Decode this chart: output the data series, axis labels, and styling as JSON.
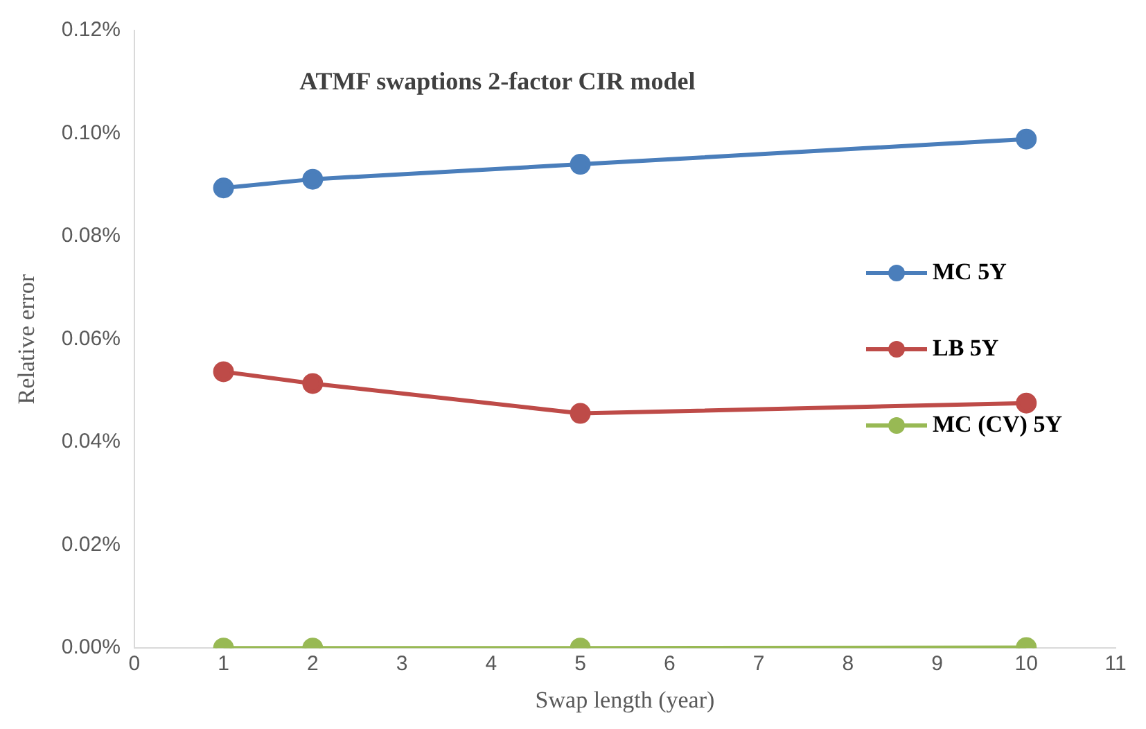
{
  "chart_data": {
    "type": "line",
    "title": "ATMF swaptions 2-factor CIR model",
    "xlabel": "Swap length (year)",
    "ylabel": "Relative error",
    "x": [
      1,
      2,
      5,
      10
    ],
    "series": [
      {
        "name": "MC 5Y",
        "color": "#4a7ebb",
        "values": [
          0.0894,
          0.0911,
          0.094,
          0.0989
        ]
      },
      {
        "name": "LB 5Y",
        "color": "#be4b48",
        "values": [
          0.0537,
          0.0514,
          0.0456,
          0.0476
        ]
      },
      {
        "name": "MC (CV) 5Y",
        "color": "#98b954",
        "values": [
          0,
          0,
          0,
          0.0001
        ]
      }
    ],
    "xlim": [
      0,
      11
    ],
    "xticks": [
      0,
      1,
      2,
      3,
      4,
      5,
      6,
      7,
      8,
      9,
      10,
      11
    ],
    "ylim": [
      0,
      0.12
    ],
    "yticks": [
      {
        "value": 0,
        "label": "0.00%"
      },
      {
        "value": 0.02,
        "label": "0.02%"
      },
      {
        "value": 0.04,
        "label": "0.04%"
      },
      {
        "value": 0.06,
        "label": "0.06%"
      },
      {
        "value": 0.08,
        "label": "0.08%"
      },
      {
        "value": 0.1,
        "label": "0.10%"
      },
      {
        "value": 0.12,
        "label": "0.12%"
      }
    ],
    "grid": false,
    "legend": "right",
    "marker": "circle",
    "line_style": "solid"
  }
}
